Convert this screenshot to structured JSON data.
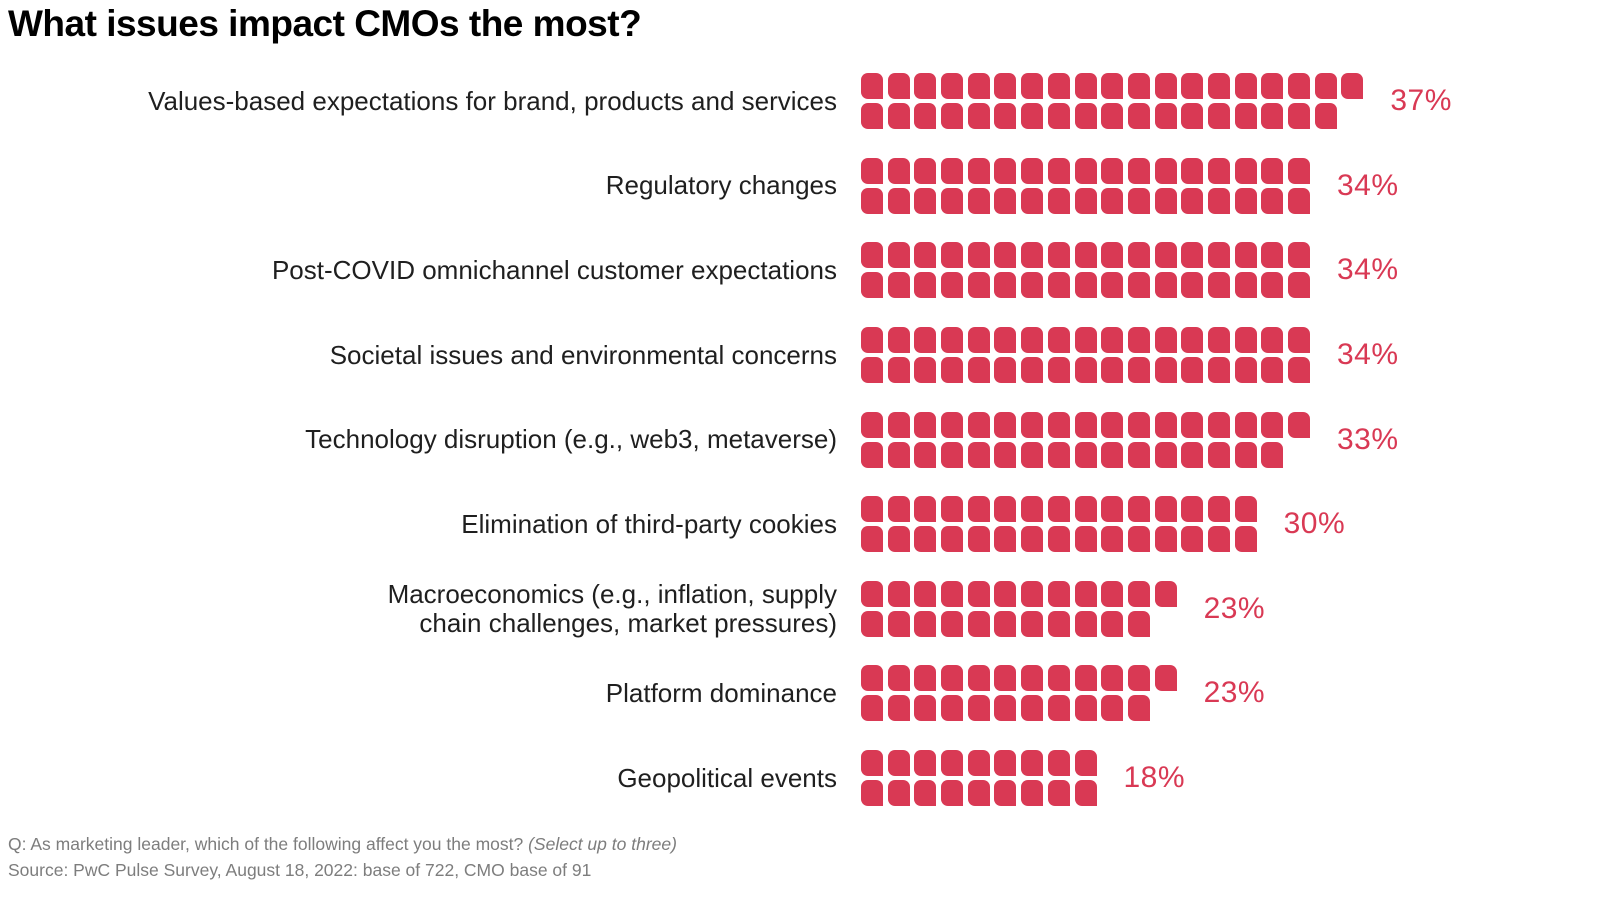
{
  "title": "What issues impact CMOs the most?",
  "accent_color": "#D93954",
  "chart_data": {
    "type": "bar",
    "subtype": "pictograph-waffle",
    "unit": "1 square = 1%",
    "squares_layout": "two lines per bar: top = ceil(value/2), bottom = floor(value/2)",
    "title": "What issues impact CMOs the most?",
    "value_suffix": "%",
    "xlim": [
      0,
      40
    ],
    "legend": "none",
    "grid": false,
    "categories": [
      "Values-based expectations for brand, products and services",
      "Regulatory changes",
      "Post-COVID omnichannel customer expectations",
      "Societal issues and environmental concerns",
      "Technology disruption (e.g., web3, metaverse)",
      "Elimination of third-party cookies",
      "Macroeconomics (e.g., inflation, supply\nchain challenges, market pressures)",
      "Platform dominance",
      "Geopolitical events"
    ],
    "values": [
      37,
      34,
      34,
      34,
      33,
      30,
      23,
      23,
      18
    ]
  },
  "footnote": {
    "question_prefix": "Q: As marketing leader, which of the following affect you the most? ",
    "question_note": "(Select up to three)",
    "source": "Source: PwC Pulse Survey, August 18, 2022: base of 722, CMO base of 91"
  }
}
